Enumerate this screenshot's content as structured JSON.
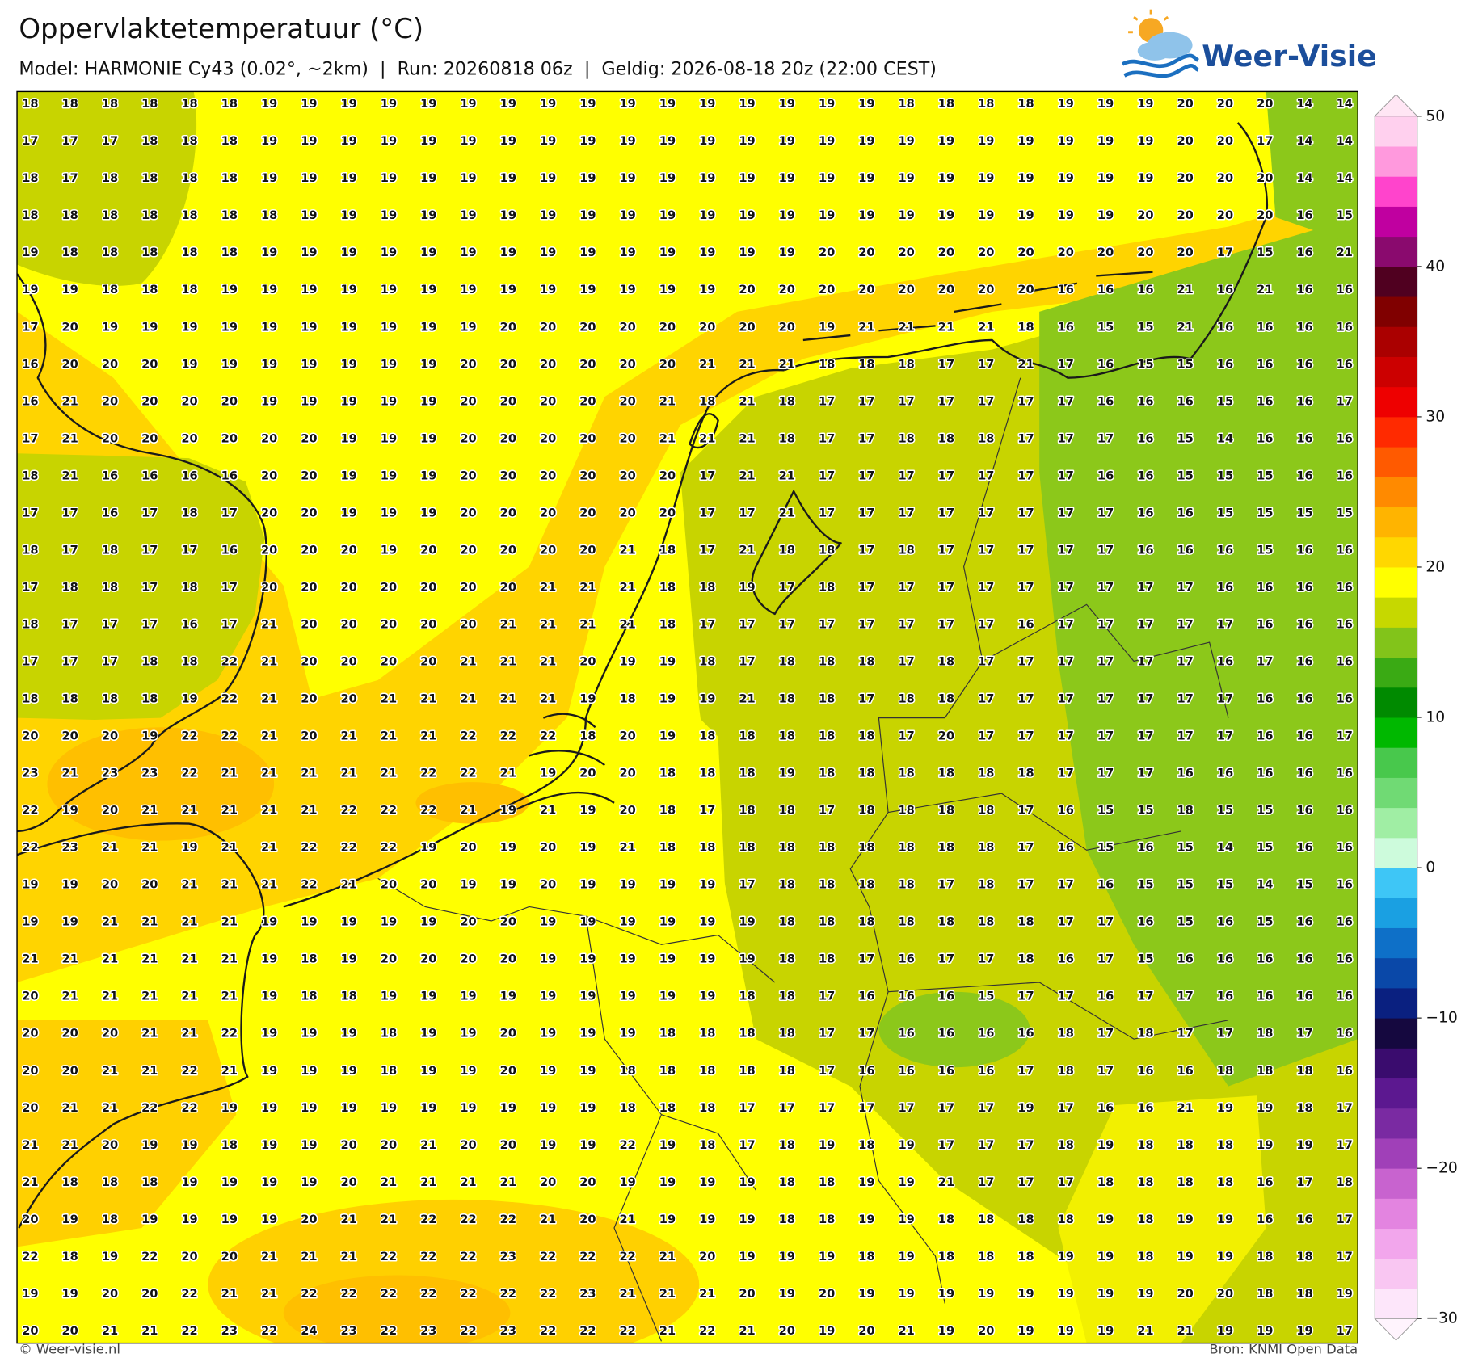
{
  "header": {
    "title": "Oppervlaktetemperatuur (°C)",
    "subtitle": "Model: HARMONIE Cy43 (0.02°, ~2km)  |  Run: 20260818 06z  |  Geldig: 2026-08-18 20z (22:00 CEST)"
  },
  "logo": {
    "text": "Weer-Visie"
  },
  "map": {
    "values": [
      [
        18,
        18,
        18,
        18,
        18,
        18,
        19,
        19,
        19,
        19,
        19,
        19,
        19,
        19,
        19,
        19,
        19,
        19,
        19,
        19,
        19,
        19,
        18,
        18,
        18,
        18,
        19,
        19,
        19,
        20,
        20,
        20,
        14,
        14
      ],
      [
        17,
        17,
        17,
        18,
        18,
        18,
        19,
        19,
        19,
        19,
        19,
        19,
        19,
        19,
        19,
        19,
        19,
        19,
        19,
        19,
        19,
        19,
        19,
        19,
        19,
        19,
        19,
        19,
        19,
        20,
        20,
        17,
        14,
        14
      ],
      [
        18,
        17,
        18,
        18,
        18,
        18,
        19,
        19,
        19,
        19,
        19,
        19,
        19,
        19,
        19,
        19,
        19,
        19,
        19,
        19,
        19,
        19,
        19,
        19,
        19,
        19,
        19,
        19,
        19,
        20,
        20,
        20,
        14,
        14
      ],
      [
        18,
        18,
        18,
        18,
        18,
        18,
        18,
        19,
        19,
        19,
        19,
        19,
        19,
        19,
        19,
        19,
        19,
        19,
        19,
        19,
        19,
        19,
        19,
        19,
        19,
        19,
        19,
        19,
        20,
        20,
        20,
        20,
        16,
        15
      ],
      [
        19,
        18,
        18,
        18,
        18,
        18,
        19,
        19,
        19,
        19,
        19,
        19,
        19,
        19,
        19,
        19,
        19,
        19,
        19,
        19,
        20,
        20,
        20,
        20,
        20,
        20,
        20,
        20,
        20,
        20,
        17,
        15,
        16,
        21
      ],
      [
        19,
        19,
        18,
        18,
        18,
        19,
        19,
        19,
        19,
        19,
        19,
        19,
        19,
        19,
        19,
        19,
        19,
        19,
        20,
        20,
        20,
        20,
        20,
        20,
        20,
        20,
        16,
        16,
        16,
        21,
        16,
        21,
        16,
        16
      ],
      [
        17,
        20,
        19,
        19,
        19,
        19,
        19,
        19,
        19,
        19,
        19,
        19,
        20,
        20,
        20,
        20,
        20,
        20,
        20,
        20,
        19,
        21,
        21,
        21,
        21,
        18,
        16,
        15,
        15,
        21,
        16,
        16,
        16,
        16
      ],
      [
        16,
        20,
        20,
        20,
        19,
        19,
        19,
        19,
        19,
        19,
        19,
        20,
        20,
        20,
        20,
        20,
        20,
        21,
        21,
        21,
        18,
        18,
        18,
        17,
        17,
        21,
        17,
        16,
        15,
        15,
        16,
        16,
        16,
        16
      ],
      [
        16,
        21,
        20,
        20,
        20,
        20,
        19,
        19,
        19,
        19,
        19,
        20,
        20,
        20,
        20,
        20,
        21,
        18,
        21,
        18,
        17,
        17,
        17,
        17,
        17,
        17,
        17,
        16,
        16,
        16,
        15,
        16,
        16,
        17
      ],
      [
        17,
        21,
        20,
        20,
        20,
        20,
        20,
        20,
        19,
        19,
        19,
        20,
        20,
        20,
        20,
        20,
        21,
        21,
        21,
        18,
        17,
        17,
        18,
        18,
        18,
        17,
        17,
        17,
        16,
        15,
        14,
        16,
        16,
        16
      ],
      [
        18,
        21,
        16,
        16,
        16,
        16,
        20,
        20,
        19,
        19,
        19,
        20,
        20,
        20,
        20,
        20,
        20,
        17,
        21,
        21,
        17,
        17,
        17,
        17,
        17,
        17,
        17,
        16,
        16,
        15,
        15,
        15,
        16,
        16
      ],
      [
        17,
        17,
        16,
        17,
        18,
        17,
        20,
        20,
        19,
        19,
        19,
        20,
        20,
        20,
        20,
        20,
        20,
        17,
        17,
        21,
        17,
        17,
        17,
        17,
        17,
        17,
        17,
        17,
        16,
        16,
        15,
        15,
        15,
        15
      ],
      [
        18,
        17,
        18,
        17,
        17,
        16,
        20,
        20,
        20,
        19,
        20,
        20,
        20,
        20,
        20,
        21,
        18,
        17,
        21,
        18,
        18,
        17,
        18,
        17,
        17,
        17,
        17,
        17,
        16,
        16,
        16,
        15,
        16,
        16
      ],
      [
        17,
        18,
        18,
        17,
        18,
        17,
        20,
        20,
        20,
        20,
        20,
        20,
        20,
        21,
        21,
        21,
        18,
        18,
        19,
        17,
        18,
        17,
        17,
        17,
        17,
        17,
        17,
        17,
        17,
        17,
        16,
        16,
        16,
        16
      ],
      [
        18,
        17,
        17,
        17,
        16,
        17,
        21,
        20,
        20,
        20,
        20,
        20,
        21,
        21,
        21,
        21,
        18,
        17,
        17,
        17,
        17,
        17,
        17,
        17,
        17,
        16,
        17,
        17,
        17,
        17,
        17,
        16,
        16,
        16
      ],
      [
        17,
        17,
        17,
        18,
        18,
        22,
        21,
        20,
        20,
        20,
        20,
        21,
        21,
        21,
        20,
        19,
        19,
        18,
        17,
        18,
        18,
        18,
        17,
        18,
        17,
        17,
        17,
        17,
        17,
        17,
        16,
        17,
        16,
        16
      ],
      [
        18,
        18,
        18,
        18,
        19,
        22,
        21,
        20,
        20,
        21,
        21,
        21,
        21,
        21,
        19,
        18,
        19,
        19,
        21,
        18,
        18,
        17,
        18,
        18,
        17,
        17,
        17,
        17,
        17,
        17,
        17,
        16,
        16,
        16
      ],
      [
        20,
        20,
        20,
        19,
        22,
        22,
        21,
        20,
        21,
        21,
        21,
        22,
        22,
        22,
        18,
        20,
        19,
        18,
        18,
        18,
        18,
        18,
        17,
        20,
        17,
        17,
        17,
        17,
        17,
        17,
        17,
        16,
        16,
        17
      ],
      [
        23,
        21,
        23,
        23,
        22,
        21,
        21,
        21,
        21,
        21,
        22,
        22,
        21,
        19,
        20,
        20,
        18,
        18,
        18,
        19,
        18,
        18,
        18,
        18,
        18,
        18,
        17,
        17,
        17,
        16,
        16,
        16,
        16,
        16
      ],
      [
        22,
        19,
        20,
        21,
        21,
        21,
        21,
        21,
        22,
        22,
        22,
        21,
        19,
        21,
        19,
        20,
        18,
        17,
        18,
        18,
        17,
        18,
        18,
        18,
        18,
        17,
        16,
        15,
        15,
        18,
        15,
        15,
        16,
        16
      ],
      [
        22,
        23,
        21,
        21,
        19,
        21,
        21,
        22,
        22,
        22,
        19,
        20,
        19,
        20,
        19,
        21,
        18,
        18,
        18,
        18,
        18,
        18,
        18,
        18,
        18,
        17,
        16,
        15,
        16,
        15,
        14,
        15,
        16,
        16
      ],
      [
        19,
        19,
        20,
        20,
        21,
        21,
        21,
        22,
        21,
        20,
        20,
        19,
        19,
        20,
        19,
        19,
        19,
        19,
        17,
        18,
        18,
        18,
        18,
        17,
        18,
        17,
        17,
        16,
        15,
        15,
        15,
        14,
        15,
        16
      ],
      [
        19,
        19,
        21,
        21,
        21,
        21,
        19,
        19,
        19,
        19,
        19,
        20,
        20,
        19,
        19,
        19,
        19,
        19,
        19,
        18,
        18,
        18,
        18,
        18,
        18,
        18,
        17,
        17,
        16,
        15,
        16,
        15,
        16,
        16
      ],
      [
        21,
        21,
        21,
        21,
        21,
        21,
        19,
        18,
        19,
        20,
        20,
        20,
        20,
        19,
        19,
        19,
        19,
        19,
        19,
        18,
        18,
        17,
        16,
        17,
        17,
        18,
        16,
        17,
        15,
        16,
        16,
        16,
        16,
        16
      ],
      [
        20,
        21,
        21,
        21,
        21,
        21,
        19,
        18,
        18,
        19,
        19,
        19,
        19,
        19,
        19,
        19,
        19,
        19,
        18,
        18,
        17,
        16,
        16,
        16,
        15,
        17,
        17,
        16,
        17,
        17,
        16,
        16,
        16,
        16
      ],
      [
        20,
        20,
        20,
        21,
        21,
        22,
        19,
        19,
        19,
        18,
        19,
        19,
        20,
        19,
        19,
        19,
        18,
        18,
        18,
        18,
        17,
        17,
        16,
        16,
        16,
        16,
        18,
        17,
        18,
        17,
        17,
        18,
        17,
        16
      ],
      [
        20,
        20,
        21,
        21,
        22,
        21,
        19,
        19,
        19,
        18,
        19,
        19,
        20,
        19,
        19,
        18,
        18,
        18,
        18,
        18,
        17,
        16,
        16,
        16,
        16,
        17,
        18,
        17,
        16,
        16,
        18,
        18,
        18,
        16
      ],
      [
        20,
        21,
        21,
        22,
        22,
        19,
        19,
        19,
        19,
        19,
        19,
        19,
        19,
        19,
        19,
        18,
        18,
        18,
        17,
        17,
        17,
        17,
        17,
        17,
        17,
        19,
        17,
        16,
        16,
        21,
        19,
        19,
        18,
        17
      ],
      [
        21,
        21,
        20,
        19,
        19,
        18,
        19,
        19,
        20,
        20,
        21,
        20,
        20,
        19,
        19,
        22,
        19,
        18,
        17,
        18,
        19,
        18,
        19,
        17,
        17,
        17,
        18,
        19,
        18,
        18,
        18,
        19,
        19,
        17
      ],
      [
        21,
        18,
        18,
        18,
        19,
        19,
        19,
        19,
        20,
        21,
        21,
        21,
        21,
        20,
        20,
        19,
        19,
        19,
        19,
        18,
        18,
        19,
        19,
        21,
        17,
        17,
        17,
        18,
        18,
        18,
        18,
        16,
        17,
        18
      ],
      [
        20,
        19,
        18,
        19,
        19,
        19,
        19,
        20,
        21,
        21,
        22,
        22,
        22,
        21,
        20,
        21,
        19,
        19,
        19,
        18,
        18,
        19,
        19,
        18,
        18,
        18,
        18,
        19,
        18,
        19,
        19,
        16,
        16,
        17
      ],
      [
        22,
        18,
        19,
        22,
        20,
        20,
        21,
        21,
        21,
        22,
        22,
        22,
        23,
        22,
        22,
        22,
        21,
        20,
        19,
        19,
        19,
        18,
        19,
        18,
        18,
        18,
        19,
        19,
        18,
        19,
        19,
        18,
        18,
        17
      ],
      [
        19,
        19,
        20,
        20,
        22,
        21,
        21,
        22,
        22,
        22,
        22,
        22,
        22,
        22,
        23,
        21,
        21,
        21,
        20,
        19,
        20,
        19,
        19,
        19,
        19,
        19,
        19,
        19,
        19,
        20,
        20,
        18,
        18,
        19
      ],
      [
        20,
        20,
        21,
        21,
        22,
        23,
        22,
        24,
        23,
        22,
        23,
        22,
        23,
        22,
        22,
        22,
        21,
        22,
        21,
        20,
        19,
        20,
        21,
        19,
        20,
        19,
        19,
        19,
        21,
        21,
        19,
        19,
        19,
        17
      ]
    ]
  },
  "colorbar": {
    "lim": [
      -30,
      50
    ],
    "ticks": [
      50,
      40,
      30,
      20,
      10,
      0,
      {
        "value": -10,
        "label": "−10"
      },
      {
        "value": -20,
        "label": "−20"
      },
      {
        "value": -30,
        "label": "−30"
      }
    ],
    "colors": [
      "#fde6fa",
      "#f9c6f2",
      "#f2a6ec",
      "#e384e0",
      "#c863cf",
      "#a040b8",
      "#7a2aa2",
      "#5c1890",
      "#3a0c6e",
      "#15083f",
      "#0a2080",
      "#0a48a8",
      "#0e70c8",
      "#1aa0e2",
      "#3ec6f6",
      "#cdfbdc",
      "#a0eea4",
      "#70da74",
      "#48c84c",
      "#00b800",
      "#008a00",
      "#3aaa14",
      "#82c41a",
      "#c6d800",
      "#ffff00",
      "#ffd700",
      "#ffb400",
      "#ff8a00",
      "#ff5a00",
      "#ff2a00",
      "#ee0000",
      "#cc0000",
      "#aa0000",
      "#800000",
      "#500020",
      "#8a0a6e",
      "#c000a0",
      "#ff44cc",
      "#ff99dd",
      "#ffd0ee"
    ]
  },
  "footer": {
    "left": "© Weer-visie.nl",
    "right": "Bron: KNMI Open Data"
  }
}
